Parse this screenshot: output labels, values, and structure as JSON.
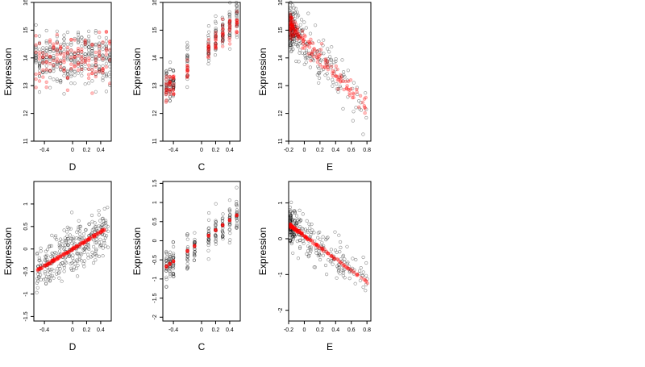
{
  "chart_data": [
    {
      "type": "scatter",
      "xlabel": "D",
      "ylabel": "Expression",
      "xlim": [
        -0.55,
        0.55
      ],
      "ylim": [
        11,
        16
      ],
      "xticks": [
        -0.4,
        0.0,
        0.2,
        0.4
      ],
      "yticks": [
        11,
        12,
        13,
        14,
        15,
        16
      ],
      "x_levels": [
        -0.52,
        -0.47,
        -0.42,
        -0.37,
        -0.32,
        -0.27,
        -0.22,
        -0.17,
        -0.12,
        -0.07,
        -0.02,
        0.03,
        0.08,
        0.13,
        0.18,
        0.23,
        0.28,
        0.33,
        0.38,
        0.43,
        0.48,
        0.53
      ],
      "black_points": {
        "center": 14.0,
        "spread": 0.75
      },
      "red_points": {
        "center": 14.0,
        "spread": 0.75
      },
      "series": [
        {
          "name": "",
          "color": "#000000"
        },
        {
          "name": "",
          "color": "#ff0000"
        }
      ]
    },
    {
      "type": "scatter",
      "xlabel": "C",
      "ylabel": "Expression",
      "xlim": [
        -0.55,
        0.55
      ],
      "ylim": [
        11,
        16
      ],
      "xticks": [
        -0.4,
        0.0,
        0.2,
        0.4
      ],
      "yticks": [
        11,
        12,
        13,
        14,
        15,
        16
      ],
      "x_levels": [
        -0.5,
        -0.45,
        -0.4,
        -0.2,
        0.1,
        0.2,
        0.3,
        0.4,
        0.5
      ],
      "black_points": {
        "intercept": 14.2,
        "slope": 2.5,
        "spread": 0.6
      },
      "red_points": {
        "intercept": 14.1,
        "slope": 2.5,
        "spread": 0.35
      },
      "series": [
        {
          "name": "",
          "color": "#000000"
        },
        {
          "name": "",
          "color": "#ff0000"
        }
      ]
    },
    {
      "type": "scatter",
      "xlabel": "E",
      "ylabel": "Expression",
      "xlim": [
        -0.2,
        0.85
      ],
      "ylim": [
        11,
        16
      ],
      "xticks": [
        -0.2,
        0.0,
        0.2,
        0.4,
        0.6,
        0.8
      ],
      "yticks": [
        11,
        12,
        13,
        14,
        15,
        16
      ],
      "black_points": {
        "intercept": 14.6,
        "slope": -3.0,
        "spread": 0.7
      },
      "red_points": {
        "intercept": 14.6,
        "slope": -3.0,
        "spread": 0.35
      },
      "series": [
        {
          "name": "",
          "color": "#000000"
        },
        {
          "name": "",
          "color": "#ff0000"
        }
      ]
    },
    {
      "type": "scatter",
      "xlabel": "D",
      "ylabel": "Expression",
      "xlim": [
        -0.55,
        0.55
      ],
      "ylim": [
        -1.6,
        1.5
      ],
      "xticks": [
        -0.4,
        0.0,
        0.2,
        0.4
      ],
      "yticks": [
        -1.5,
        -1.0,
        -0.5,
        0.0,
        0.5,
        1.0
      ],
      "black_points": {
        "intercept": 0.0,
        "slope": 0.95,
        "spread": 0.45
      },
      "red_points": {
        "intercept": 0.0,
        "slope": 0.95
      },
      "series": [
        {
          "name": "",
          "color": "#000000"
        },
        {
          "name": "",
          "color": "#ff0000"
        }
      ]
    },
    {
      "type": "scatter",
      "xlabel": "C",
      "ylabel": "Expression",
      "xlim": [
        -0.55,
        0.55
      ],
      "ylim": [
        -2.1,
        1.55
      ],
      "xticks": [
        -0.4,
        0.0,
        0.2,
        0.4
      ],
      "yticks": [
        -2.0,
        -1.5,
        -1.0,
        -0.5,
        0.0,
        0.5,
        1.0,
        1.5
      ],
      "x_levels": [
        -0.5,
        -0.45,
        -0.4,
        -0.2,
        -0.1,
        0.1,
        0.2,
        0.3,
        0.4,
        0.5
      ],
      "black_points": {
        "intercept": 0.0,
        "slope": 1.35,
        "spread": 0.45
      },
      "red_points": {
        "intercept": 0.0,
        "slope": 1.35
      },
      "series": [
        {
          "name": "",
          "color": "#000000"
        },
        {
          "name": "",
          "color": "#ff0000"
        }
      ]
    },
    {
      "type": "scatter",
      "xlabel": "E",
      "ylabel": "Expression",
      "xlim": [
        -0.2,
        0.85
      ],
      "ylim": [
        -2.3,
        1.6
      ],
      "xticks": [
        -0.2,
        0.0,
        0.2,
        0.4,
        0.6,
        0.8
      ],
      "yticks": [
        -2,
        -1,
        0,
        1
      ],
      "black_points": {
        "intercept": 0.08,
        "slope": -1.6,
        "spread": 0.45
      },
      "red_points": {
        "intercept": 0.08,
        "slope": -1.6
      },
      "series": [
        {
          "name": "",
          "color": "#000000"
        },
        {
          "name": "",
          "color": "#ff0000"
        }
      ]
    }
  ]
}
